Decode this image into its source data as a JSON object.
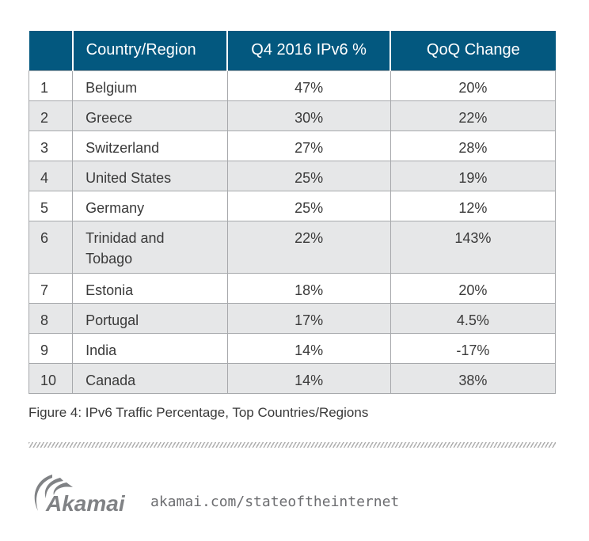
{
  "table": {
    "headers": [
      "",
      "Country/Region",
      "Q4 2016 IPv6 %",
      "QoQ Change"
    ],
    "rows": [
      [
        "1",
        "Belgium",
        "47%",
        "20%"
      ],
      [
        "2",
        "Greece",
        "30%",
        "22%"
      ],
      [
        "3",
        "Switzerland",
        "27%",
        "28%"
      ],
      [
        "4",
        "United States",
        "25%",
        "19%"
      ],
      [
        "5",
        "Germany",
        "25%",
        "12%"
      ],
      [
        "6",
        "Trinidad and Tobago",
        "22%",
        "143%"
      ],
      [
        "7",
        "Estonia",
        "18%",
        "20%"
      ],
      [
        "8",
        "Portugal",
        "17%",
        "4.5%"
      ],
      [
        "9",
        "India",
        "14%",
        "-17%"
      ],
      [
        "10",
        "Canada",
        "14%",
        "38%"
      ]
    ]
  },
  "caption": "Figure 4: IPv6 Traffic Percentage, Top Countries/Regions",
  "footer": {
    "logo_text": "Akamai",
    "url": "akamai.com/stateoftheinternet"
  },
  "colors": {
    "header": "#03587f",
    "alt_row": "#e6e7e8"
  }
}
